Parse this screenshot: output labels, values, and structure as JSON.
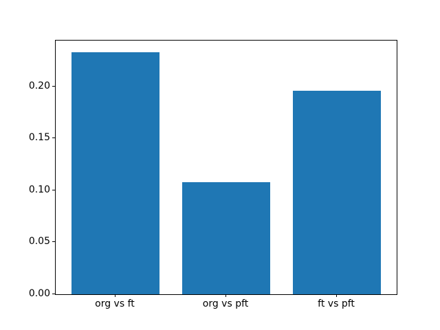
{
  "chart_data": {
    "type": "bar",
    "categories": [
      "org vs ft",
      "org vs pft",
      "ft vs pft"
    ],
    "values": [
      0.233,
      0.108,
      0.196
    ],
    "title": "",
    "xlabel": "",
    "ylabel": "",
    "ylim": [
      0,
      0.244
    ],
    "yticks": [
      0.0,
      0.05,
      0.1,
      0.15,
      0.2
    ],
    "ytick_labels": [
      "0.00",
      "0.05",
      "0.10",
      "0.15",
      "0.20"
    ],
    "bar_color": "#1f77b4",
    "axes_background": "#ffffff",
    "figure_background": "#ffffff",
    "spine_color": "#000000",
    "grid": false,
    "legend": "none",
    "bar_width_fraction": 0.8
  }
}
